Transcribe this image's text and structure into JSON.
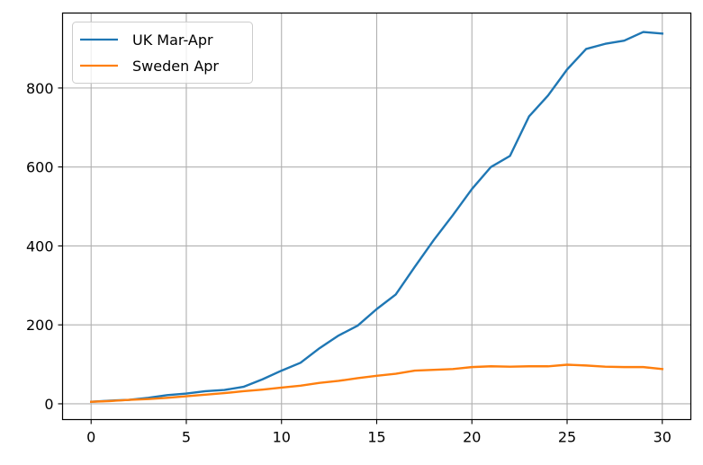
{
  "chart_data": {
    "type": "line",
    "title": "",
    "xlabel": "",
    "ylabel": "",
    "xlim": [
      -1.5,
      31.5
    ],
    "ylim": [
      -40,
      990
    ],
    "xticks": [
      0,
      5,
      10,
      15,
      20,
      25,
      30
    ],
    "yticks": [
      0,
      200,
      400,
      600,
      800
    ],
    "grid": true,
    "legend_position": "top-left",
    "x": [
      0,
      1,
      2,
      3,
      4,
      5,
      6,
      7,
      8,
      9,
      10,
      11,
      12,
      13,
      14,
      15,
      16,
      17,
      18,
      19,
      20,
      21,
      22,
      23,
      24,
      25,
      26,
      27,
      28,
      29,
      30
    ],
    "series": [
      {
        "name": "UK Mar-Apr",
        "color": "#1f77b4",
        "values": [
          5,
          8,
          10,
          15,
          22,
          26,
          32,
          35,
          43,
          62,
          84,
          104,
          141,
          173,
          198,
          240,
          277,
          347,
          415,
          478,
          544,
          600,
          628,
          728,
          781,
          847,
          899,
          912,
          920,
          942,
          938
        ]
      },
      {
        "name": "Sweden Apr",
        "color": "#ff7f0e",
        "values": [
          5,
          7,
          10,
          12,
          15,
          19,
          23,
          27,
          32,
          36,
          41,
          46,
          53,
          58,
          65,
          71,
          76,
          84,
          86,
          88,
          93,
          95,
          94,
          95,
          95,
          99,
          97,
          94,
          93,
          93,
          88
        ]
      }
    ]
  }
}
